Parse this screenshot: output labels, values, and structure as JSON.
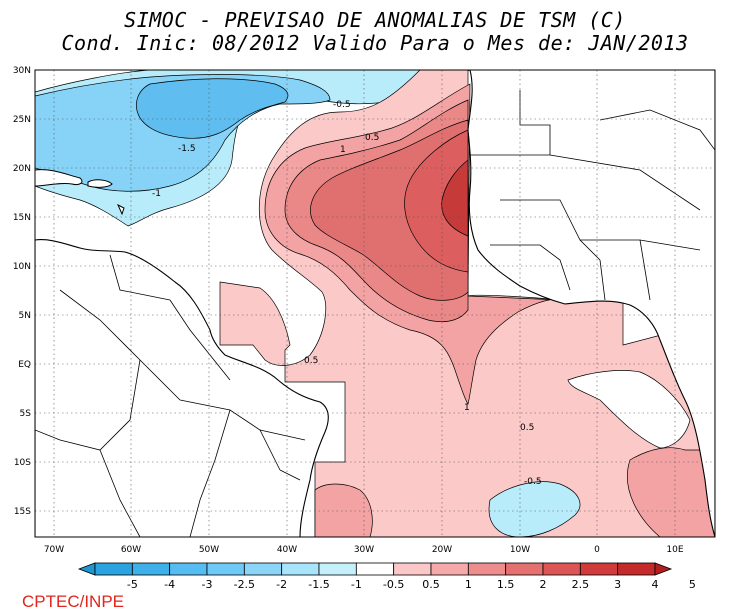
{
  "title": {
    "line1": "SIMOC - PREVISAO DE ANOMALIAS DE TSM (C)",
    "line2": "Cond. Inic: 08/2012   Valido Para o Mes de: JAN/2013"
  },
  "lat_labels": [
    "30N",
    "25N",
    "20N",
    "15N",
    "10N",
    "5N",
    "EQ",
    "5S",
    "10S",
    "15S"
  ],
  "lon_labels": [
    "70W",
    "60W",
    "50W",
    "40W",
    "30W",
    "20W",
    "10W",
    "0",
    "10E"
  ],
  "contour_labels": [
    "-0.5",
    "0.5",
    "-1.5",
    "1",
    "-1",
    "0.5",
    "1",
    "0.5",
    "-0.5"
  ],
  "colorbar": {
    "labels": [
      "-5",
      "-4",
      "-3",
      "-2.5",
      "-2",
      "-1.5",
      "-1",
      "-0.5",
      "0.5",
      "1",
      "1.5",
      "2",
      "2.5",
      "3",
      "4",
      "5"
    ],
    "colors": [
      "#1e96d2",
      "#2aa3e0",
      "#3db0ea",
      "#55bdf2",
      "#6ec9f6",
      "#8ad5f8",
      "#a8e4fb",
      "#c6effc",
      "#ffffff",
      "#fbc7c7",
      "#f5a9a9",
      "#ee8d8d",
      "#e57070",
      "#dc5656",
      "#d23b3b",
      "#c42a2a",
      "#b51e1e"
    ]
  },
  "footer": "CPTEC/INPE"
}
